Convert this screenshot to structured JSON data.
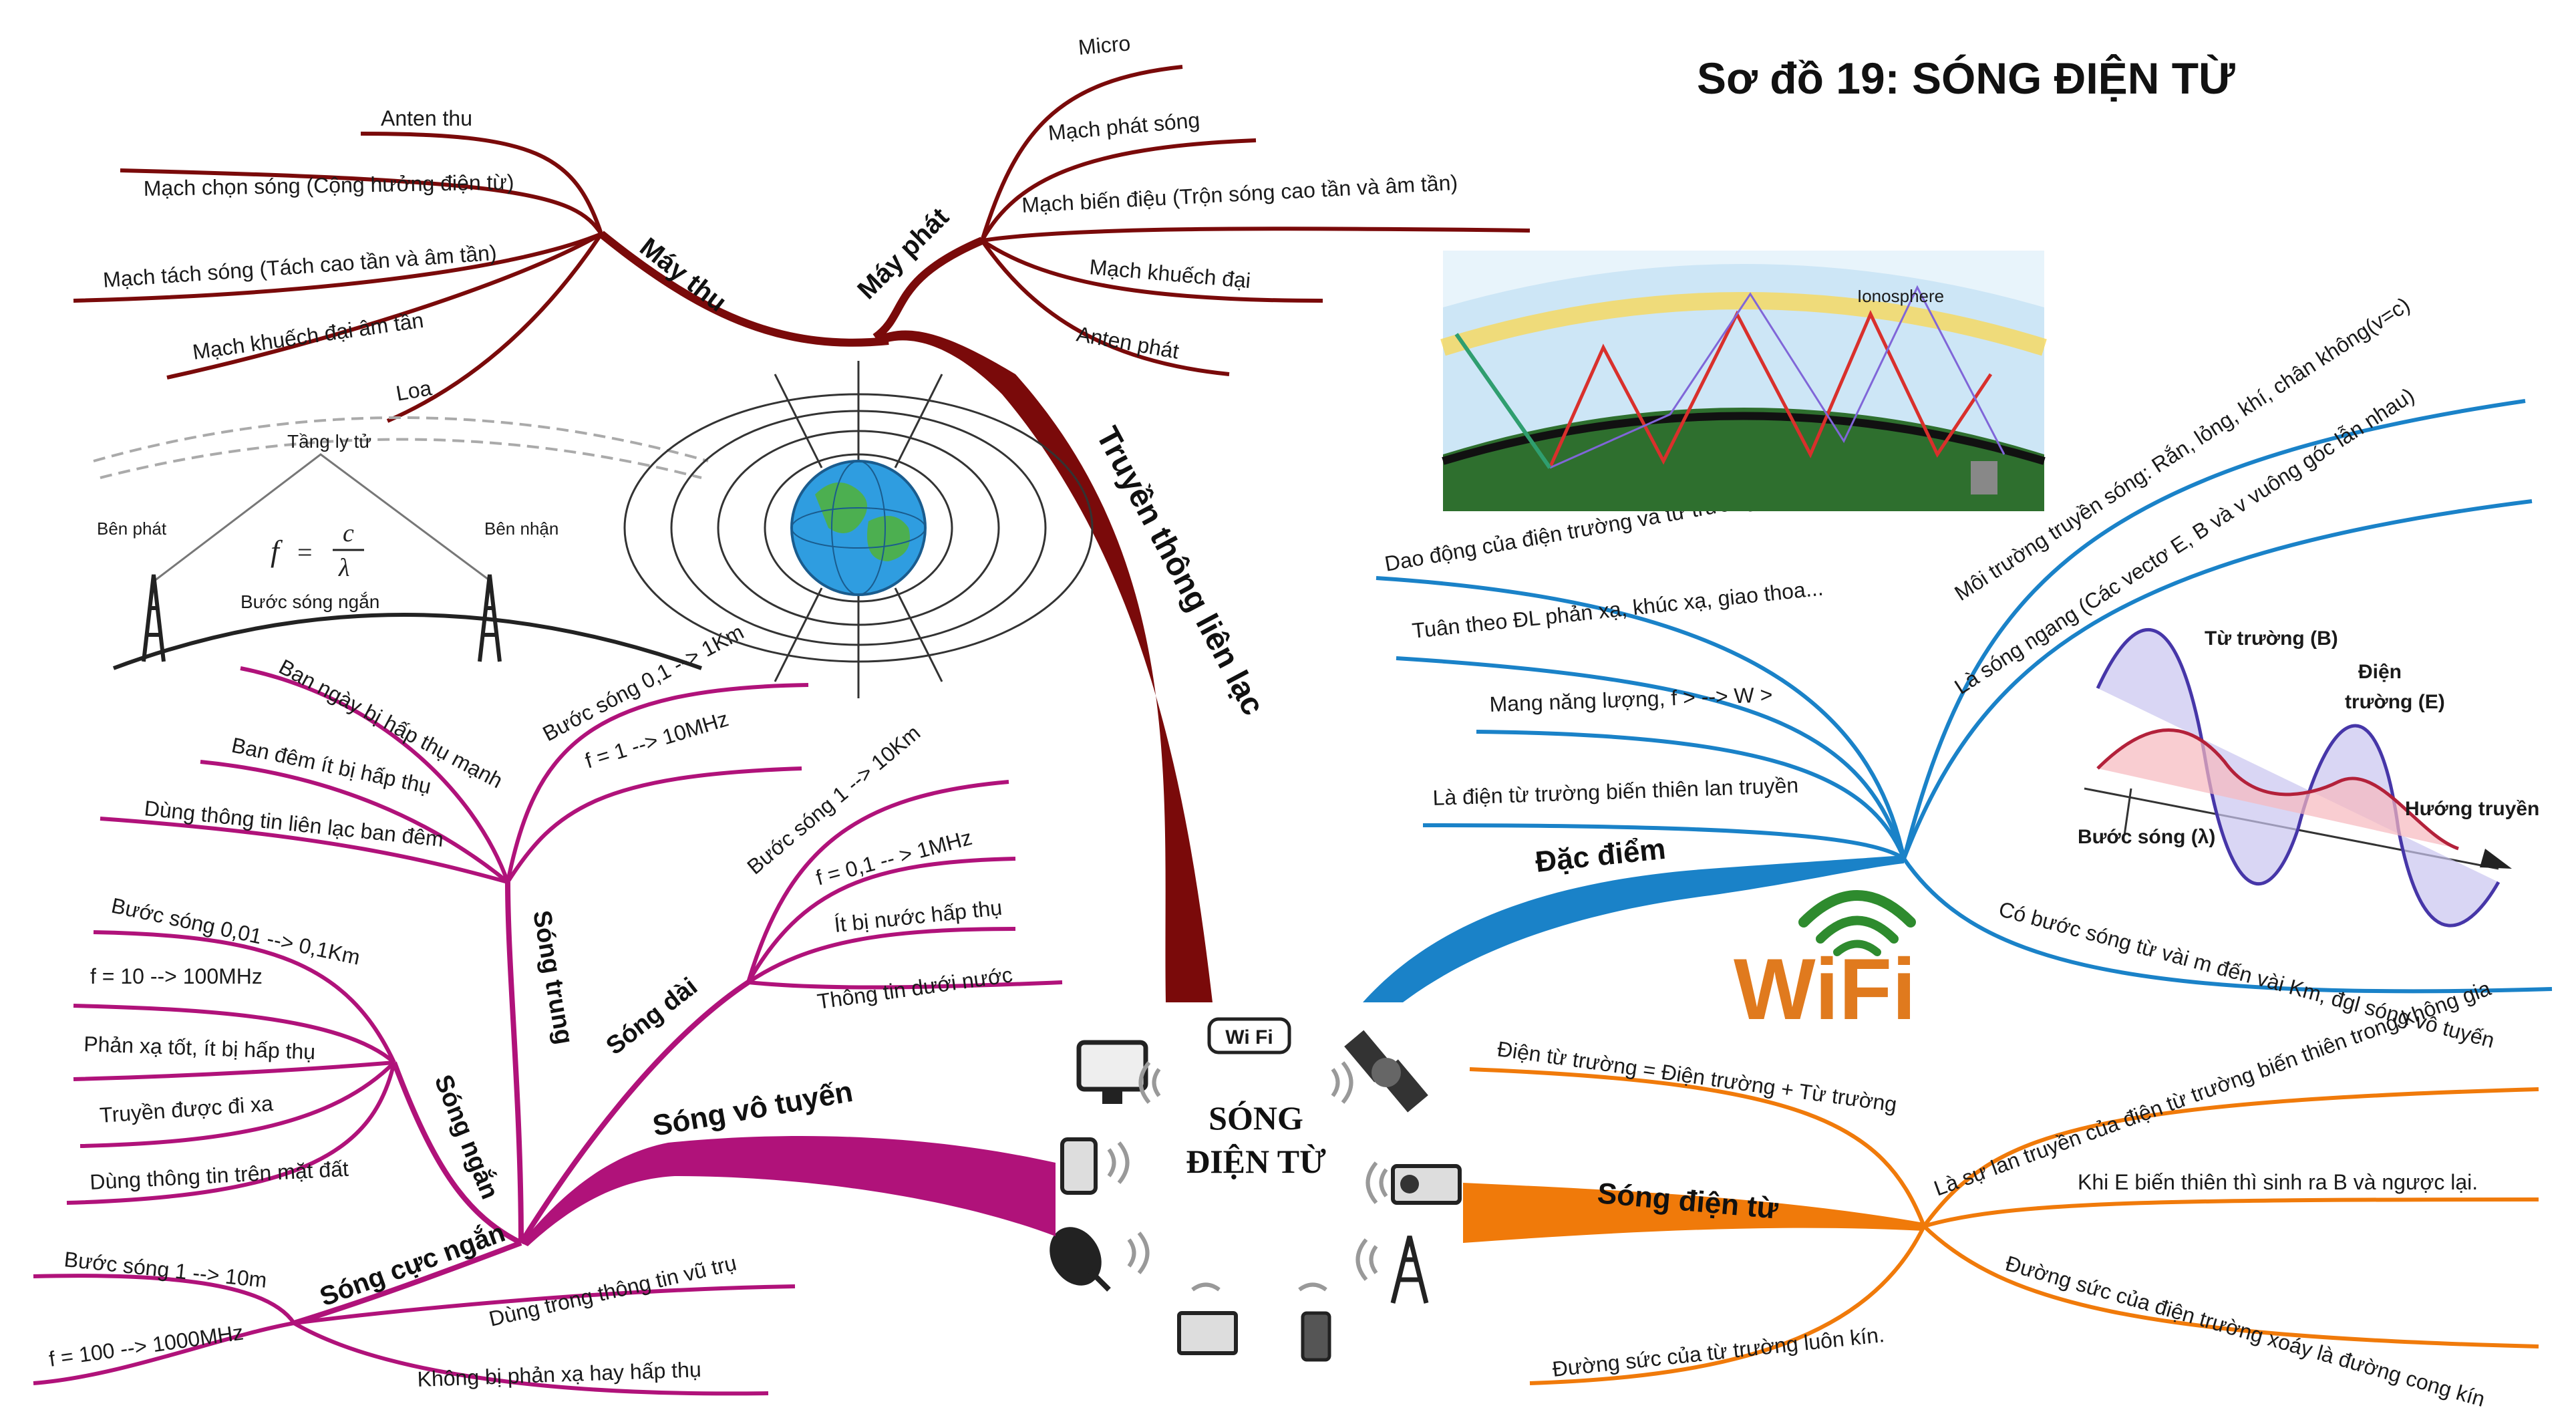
{
  "title": "Sơ đồ 19: SÓNG ĐIỆN TỪ",
  "center": {
    "line1": "SÓNG",
    "line2": "ĐIỆN TỪ",
    "wifi_badge": "Wi Fi"
  },
  "colors": {
    "communication": "#7a0a0a",
    "radio": "#b0127a",
    "features": "#1a82c8",
    "em_wave": "#f07a0a"
  },
  "communication": {
    "label": "Truyền thông liên lạc",
    "receiver": {
      "label": "Máy thu",
      "items": [
        "Anten thu",
        "Mạch chọn sóng (Cộng hưởng điện từ)",
        "Mạch tách sóng (Tách cao tần và âm tần)",
        "Mạch khuếch đại âm tần",
        "Loa"
      ]
    },
    "transmitter": {
      "label": "Máy phát",
      "items": [
        "Micro",
        "Mạch phát sóng",
        "Mạch biến điệu (Trộn sóng cao tần và âm tần)",
        "Mạch khuếch đại",
        "Anten phát"
      ]
    }
  },
  "radio": {
    "label": "Sóng vô tuyến",
    "medium": {
      "label": "Sóng trung",
      "items": [
        "Bước sóng 0,1 --> 1Km",
        "f = 1 --> 10MHz",
        "Ban ngày bị hấp thụ mạnh",
        "Ban đêm ít bị hấp thụ",
        "Dùng thông tin liên lạc ban đêm"
      ]
    },
    "long": {
      "label": "Sóng dài",
      "items": [
        "Bước sóng 1 --> 10Km",
        "f = 0,1 -- > 1MHz",
        "Ít bị nước hấp thụ",
        "Thông tin dưới nước"
      ]
    },
    "short": {
      "label": "Sóng ngắn",
      "items": [
        "Bước sóng 0,01 --> 0,1Km",
        "f = 10 --> 100MHz",
        "Phản xạ tốt, ít bị hấp thụ",
        "Truyền được đi xa",
        "Dùng thông tin trên mặt đất"
      ]
    },
    "ultrashort": {
      "label": "Sóng cực ngắn",
      "items": [
        "Bước sóng 1 --> 10m",
        "f = 100 --> 1000MHz",
        "Dùng trong thông tin vũ trụ",
        "Không bị phản xạ hay hấp thụ"
      ]
    }
  },
  "features": {
    "label": "Đặc điểm",
    "items": [
      "Dao động của điện trường và từ trường luôn cùng pha.",
      "Tuân theo ĐL  phản xạ, khúc xạ, giao thoa...",
      "Mang năng lượng, f > --> W >",
      "Là điện từ trường biến thiên lan truyền",
      "Môi trường truyền sóng: Rắn, lỏng, khí, chân không(v=c)",
      "Là sóng ngang (Các vectơ E, B và v vuông góc lẫn nhau)",
      "Có bước sóng từ vài m đến vài Km, đgl sóng vô tuyến"
    ]
  },
  "em_wave": {
    "label": "Sóng điện từ",
    "items": [
      "Điện từ trường = Điện trường + Từ trường",
      "Là sự lan truyền của điện từ trường biến thiên trong không gia",
      "Khi E biến thiên thì sinh ra B và ngược lại.",
      "Đường sức của điện trường xoáy là đường cong kín",
      "Đường sức của từ trường luôn kín."
    ]
  },
  "illustrations": {
    "ionosphere": {
      "label": "Ionosphere"
    },
    "shortwave": {
      "layer": "Tầng ly tử",
      "sender": "Bên phát",
      "receiver": "Bên nhận",
      "formula_f": "f",
      "formula_c": "c",
      "formula_lambda": "λ",
      "caption": "Bước sóng ngắn"
    },
    "em_wave_diagram": {
      "magnetic": "Từ trường (B)",
      "electric_1": "Điện",
      "electric_2": "trường (E)",
      "direction": "Hướng truyền",
      "wavelength": "Bước sóng (λ)"
    },
    "wifi_logo": {
      "text": "WiFi"
    }
  }
}
